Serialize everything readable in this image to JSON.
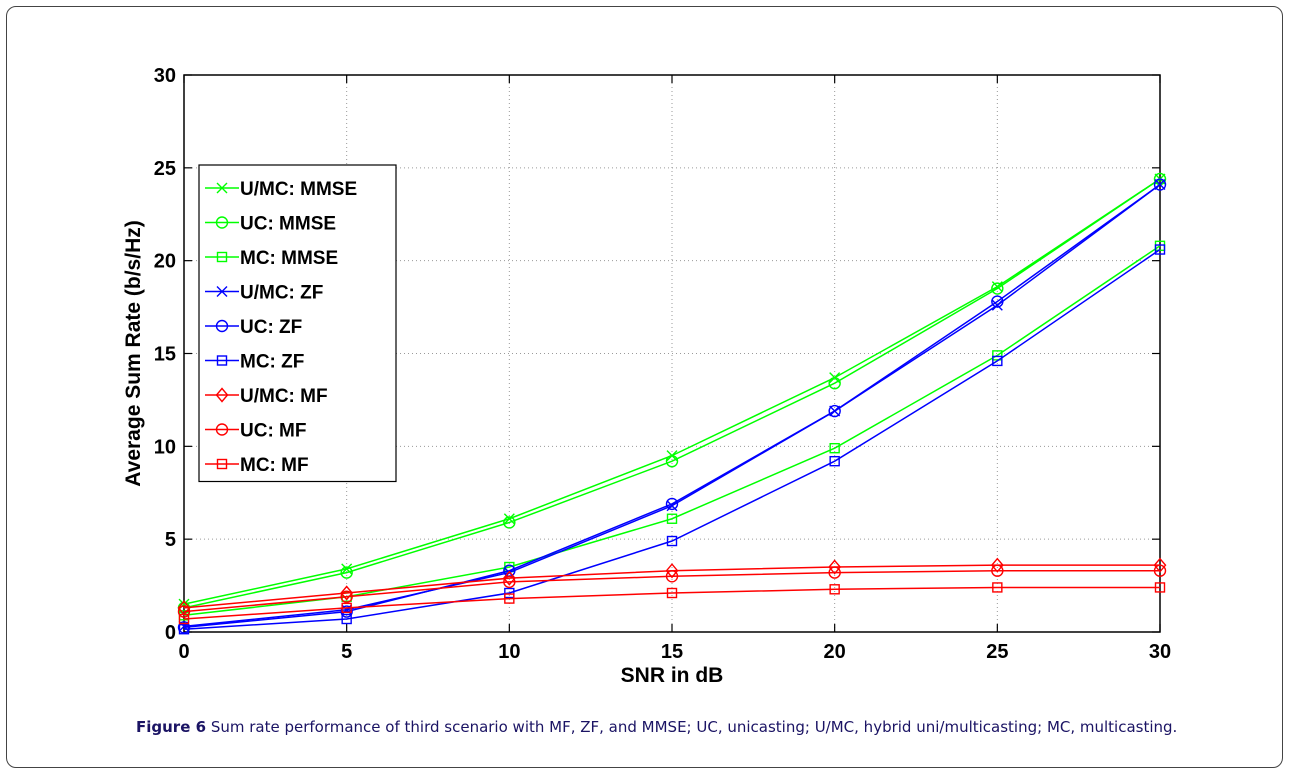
{
  "caption": {
    "label": "Figure 6",
    "text": "Sum rate performance of third scenario with MF, ZF, and MMSE; UC, unicasting; U/MC, hybrid uni/multicasting; MC, multicasting."
  },
  "chart_data": {
    "type": "line",
    "title": "",
    "xlabel": "SNR in dB",
    "ylabel": "Average Sum Rate (b/s/Hz)",
    "xlim": [
      0,
      30
    ],
    "ylim": [
      0,
      30
    ],
    "xticks": [
      0,
      5,
      10,
      15,
      20,
      25,
      30
    ],
    "yticks": [
      0,
      5,
      10,
      15,
      20,
      25,
      30
    ],
    "grid": true,
    "legend_position": "upper-left",
    "x": [
      0,
      5,
      10,
      15,
      20,
      25,
      30
    ],
    "series": [
      {
        "name": "U/MC: MMSE",
        "color": "#00ff00",
        "marker": "x",
        "values": [
          1.5,
          3.4,
          6.1,
          9.5,
          13.7,
          18.6,
          24.4
        ]
      },
      {
        "name": "UC: MMSE",
        "color": "#00ff00",
        "marker": "o",
        "values": [
          1.3,
          3.2,
          5.9,
          9.2,
          13.4,
          18.5,
          24.4
        ]
      },
      {
        "name": "MC: MMSE",
        "color": "#00ff00",
        "marker": "s",
        "values": [
          0.9,
          1.9,
          3.5,
          6.1,
          9.9,
          14.9,
          20.8
        ]
      },
      {
        "name": "U/MC: ZF",
        "color": "#0000ff",
        "marker": "x",
        "values": [
          0.3,
          1.2,
          3.2,
          6.8,
          11.9,
          17.6,
          24.1
        ]
      },
      {
        "name": "UC: ZF",
        "color": "#0000ff",
        "marker": "o",
        "values": [
          0.25,
          1.1,
          3.3,
          6.9,
          11.9,
          17.8,
          24.1
        ]
      },
      {
        "name": "MC: ZF",
        "color": "#0000ff",
        "marker": "s",
        "values": [
          0.15,
          0.7,
          2.1,
          4.9,
          9.2,
          14.6,
          20.6
        ]
      },
      {
        "name": "U/MC: MF",
        "color": "#ff0000",
        "marker": "d",
        "values": [
          1.3,
          2.1,
          2.9,
          3.3,
          3.5,
          3.6,
          3.6
        ]
      },
      {
        "name": "UC: MF",
        "color": "#ff0000",
        "marker": "o",
        "values": [
          1.1,
          1.9,
          2.7,
          3.0,
          3.2,
          3.3,
          3.3
        ]
      },
      {
        "name": "MC: MF",
        "color": "#ff0000",
        "marker": "s",
        "values": [
          0.7,
          1.3,
          1.8,
          2.1,
          2.3,
          2.4,
          2.4
        ]
      }
    ]
  }
}
